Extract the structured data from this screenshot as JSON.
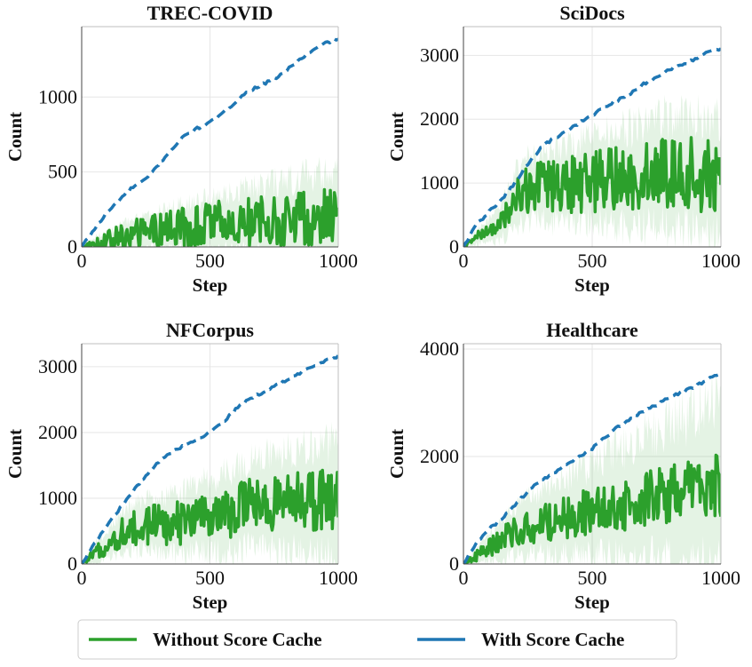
{
  "colors": {
    "without": "#2ca02c",
    "with": "#1f77b4",
    "band": "#2ca02c",
    "grid": "#e6e6e6",
    "axis": "#bfbfbf"
  },
  "legend": {
    "items": [
      {
        "label": "Without Score Cache",
        "color": "#2ca02c",
        "style": "solid"
      },
      {
        "label": "With Score Cache",
        "color": "#1f77b4",
        "style": "solid"
      }
    ]
  },
  "chart_data": [
    {
      "type": "line",
      "title": "TREC-COVID",
      "xlabel": "Step",
      "ylabel": "Count",
      "xlim": [
        0,
        1000
      ],
      "ylim": [
        0,
        1470
      ],
      "xticks": [
        0,
        500,
        1000
      ],
      "yticks": [
        0,
        500,
        1000
      ],
      "grid": true,
      "series": [
        {
          "name": "With Score Cache",
          "style": "dashed",
          "x": [
            0,
            50,
            100,
            150,
            200,
            250,
            300,
            350,
            400,
            450,
            500,
            550,
            600,
            650,
            700,
            750,
            800,
            850,
            900,
            950,
            1000
          ],
          "values": [
            0,
            120,
            230,
            320,
            400,
            450,
            550,
            650,
            740,
            790,
            830,
            890,
            970,
            1040,
            1080,
            1120,
            1180,
            1250,
            1310,
            1360,
            1390
          ]
        },
        {
          "name": "Without Score Cache",
          "style": "solid",
          "x": [
            0,
            50,
            100,
            150,
            200,
            250,
            300,
            350,
            400,
            450,
            500,
            550,
            600,
            650,
            700,
            750,
            800,
            850,
            900,
            950,
            1000
          ],
          "values": [
            0,
            20,
            40,
            60,
            80,
            95,
            110,
            120,
            130,
            140,
            150,
            155,
            160,
            165,
            170,
            175,
            180,
            185,
            190,
            200,
            200
          ],
          "noise": [
            0,
            25,
            40,
            55,
            60,
            70,
            75,
            80,
            85,
            90,
            95,
            95,
            100,
            100,
            105,
            105,
            110,
            110,
            115,
            115,
            120
          ],
          "band_noise": [
            0,
            60,
            90,
            120,
            140,
            160,
            180,
            200,
            220,
            240,
            260,
            280,
            300,
            320,
            340,
            360,
            380,
            400,
            420,
            440,
            450
          ]
        }
      ]
    },
    {
      "type": "line",
      "title": "SciDocs",
      "xlabel": "Step",
      "ylabel": "Count",
      "xlim": [
        0,
        1000
      ],
      "ylim": [
        0,
        3450
      ],
      "xticks": [
        0,
        500,
        1000
      ],
      "yticks": [
        0,
        1000,
        2000,
        3000
      ],
      "grid": true,
      "series": [
        {
          "name": "With Score Cache",
          "style": "dashed",
          "x": [
            0,
            50,
            100,
            150,
            200,
            250,
            300,
            350,
            400,
            450,
            500,
            550,
            600,
            650,
            700,
            750,
            800,
            850,
            900,
            950,
            1000
          ],
          "values": [
            0,
            350,
            550,
            750,
            1000,
            1300,
            1550,
            1700,
            1800,
            1950,
            2050,
            2200,
            2300,
            2400,
            2550,
            2650,
            2780,
            2850,
            2950,
            3050,
            3100
          ]
        },
        {
          "name": "Without Score Cache",
          "style": "solid",
          "x": [
            0,
            50,
            100,
            150,
            200,
            250,
            300,
            350,
            400,
            450,
            500,
            550,
            600,
            650,
            700,
            750,
            800,
            850,
            900,
            950,
            1000
          ],
          "values": [
            0,
            150,
            250,
            400,
            750,
            900,
            920,
            950,
            980,
            1000,
            1020,
            1050,
            1080,
            1100,
            1120,
            1150,
            1180,
            1200,
            1150,
            1100,
            1050
          ],
          "noise": [
            0,
            50,
            60,
            120,
            200,
            250,
            260,
            270,
            280,
            290,
            300,
            300,
            310,
            320,
            330,
            340,
            350,
            360,
            360,
            360,
            360
          ],
          "band_noise": [
            0,
            150,
            250,
            400,
            600,
            700,
            750,
            800,
            850,
            900,
            950,
            1000,
            1050,
            1100,
            1150,
            1200,
            1250,
            1300,
            1300,
            1300,
            1300
          ]
        }
      ]
    },
    {
      "type": "line",
      "title": "NFCorpus",
      "xlabel": "Step",
      "ylabel": "Count",
      "xlim": [
        0,
        1000
      ],
      "ylim": [
        0,
        3350
      ],
      "xticks": [
        0,
        500,
        1000
      ],
      "yticks": [
        0,
        1000,
        2000,
        3000
      ],
      "grid": true,
      "series": [
        {
          "name": "With Score Cache",
          "style": "dashed",
          "x": [
            0,
            50,
            100,
            150,
            200,
            250,
            300,
            350,
            400,
            450,
            500,
            550,
            600,
            650,
            700,
            750,
            800,
            850,
            900,
            950,
            1000
          ],
          "values": [
            0,
            300,
            600,
            850,
            1100,
            1350,
            1550,
            1700,
            1800,
            1900,
            2000,
            2150,
            2350,
            2500,
            2600,
            2700,
            2800,
            2900,
            3000,
            3100,
            3150
          ]
        },
        {
          "name": "Without Score Cache",
          "style": "solid",
          "x": [
            0,
            50,
            100,
            150,
            200,
            250,
            300,
            350,
            400,
            450,
            500,
            550,
            600,
            650,
            700,
            750,
            800,
            850,
            900,
            950,
            1000
          ],
          "values": [
            0,
            150,
            300,
            450,
            550,
            600,
            620,
            600,
            640,
            680,
            720,
            760,
            820,
            880,
            900,
            920,
            920,
            930,
            950,
            960,
            980
          ],
          "noise": [
            0,
            60,
            100,
            140,
            170,
            190,
            200,
            200,
            210,
            220,
            230,
            240,
            250,
            260,
            270,
            270,
            280,
            290,
            300,
            300,
            300
          ],
          "band_noise": [
            0,
            200,
            300,
            400,
            500,
            550,
            600,
            650,
            700,
            750,
            800,
            850,
            900,
            950,
            1000,
            1050,
            1100,
            1150,
            1200,
            1250,
            1300
          ]
        }
      ]
    },
    {
      "type": "line",
      "title": "Healthcare",
      "xlabel": "Step",
      "ylabel": "Count",
      "xlim": [
        0,
        1000
      ],
      "ylim": [
        0,
        4100
      ],
      "xticks": [
        0,
        500,
        1000
      ],
      "yticks": [
        0,
        2000,
        4000
      ],
      "grid": true,
      "series": [
        {
          "name": "With Score Cache",
          "style": "dashed",
          "x": [
            0,
            50,
            100,
            150,
            200,
            250,
            300,
            350,
            400,
            450,
            500,
            550,
            600,
            650,
            700,
            750,
            800,
            850,
            900,
            950,
            1000
          ],
          "values": [
            0,
            400,
            650,
            850,
            1100,
            1350,
            1550,
            1700,
            1850,
            2000,
            2150,
            2350,
            2550,
            2700,
            2850,
            2950,
            3100,
            3200,
            3300,
            3450,
            3550
          ]
        },
        {
          "name": "Without Score Cache",
          "style": "solid",
          "x": [
            0,
            50,
            100,
            150,
            200,
            250,
            300,
            350,
            400,
            450,
            500,
            550,
            600,
            650,
            700,
            750,
            800,
            850,
            900,
            950,
            1000
          ],
          "values": [
            0,
            150,
            300,
            450,
            600,
            700,
            760,
            800,
            860,
            920,
            980,
            1040,
            1100,
            1160,
            1200,
            1250,
            1300,
            1350,
            1400,
            1450,
            1500
          ],
          "noise": [
            0,
            60,
            100,
            150,
            180,
            200,
            220,
            230,
            240,
            260,
            280,
            300,
            310,
            320,
            330,
            340,
            350,
            360,
            370,
            380,
            390
          ],
          "band_noise": [
            0,
            200,
            350,
            500,
            650,
            750,
            850,
            950,
            1050,
            1150,
            1250,
            1350,
            1450,
            1550,
            1650,
            1750,
            1850,
            1950,
            2050,
            2150,
            2250
          ]
        }
      ]
    }
  ]
}
